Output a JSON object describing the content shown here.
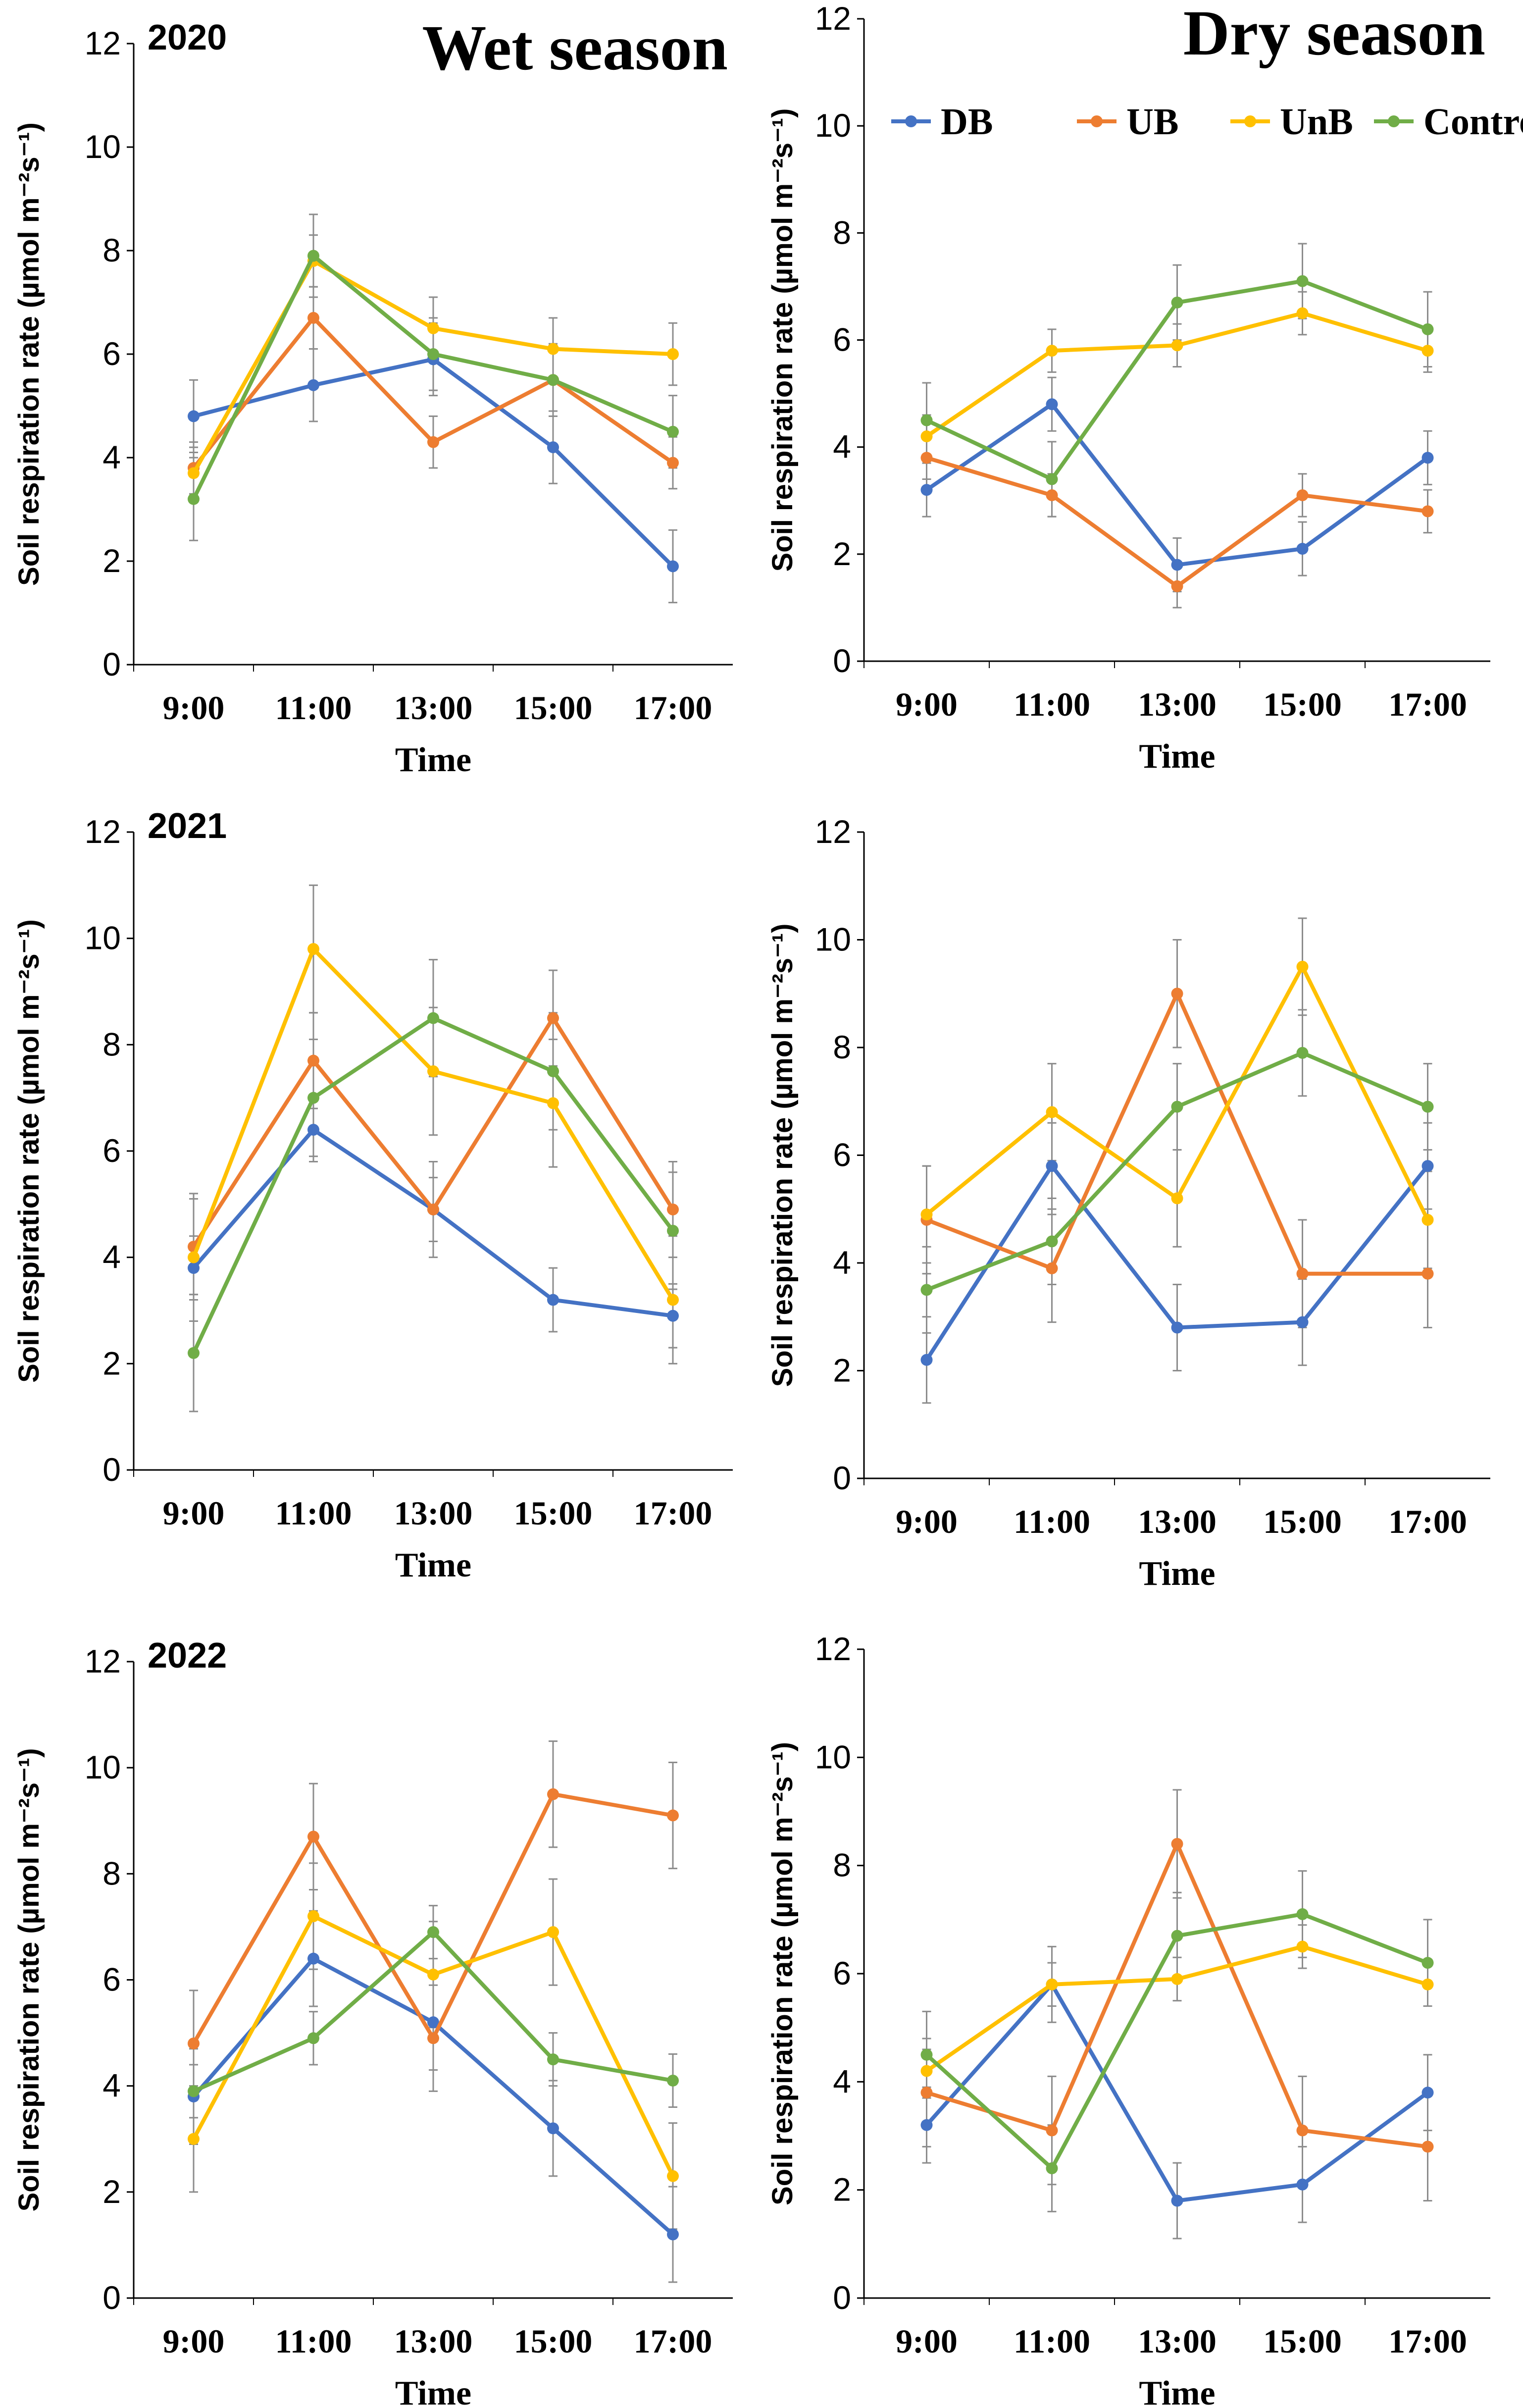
{
  "figure": {
    "wet_title": "Wet season",
    "dry_title": "Dry season"
  },
  "legend": {
    "entries": [
      {
        "name": "DB",
        "color": "#4472C4"
      },
      {
        "name": "UB",
        "color": "#ED7D31"
      },
      {
        "name": "UnB",
        "color": "#FFC000"
      },
      {
        "name": "Control",
        "color": "#70AD47"
      }
    ]
  },
  "chart_data": [
    {
      "type": "line",
      "id": "wet-2020",
      "year_label": "2020",
      "categories": [
        "9:00",
        "11:00",
        "13:00",
        "15:00",
        "17:00"
      ],
      "xlabel": "Time",
      "ylabel": "Soil respiration rate (µmol m⁻²s⁻¹)",
      "ylim": [
        0,
        12
      ],
      "yticks": [
        0,
        2,
        4,
        6,
        8,
        10,
        12
      ],
      "series": [
        {
          "name": "DB",
          "color": "#4472C4",
          "values": [
            4.8,
            5.4,
            5.9,
            4.2,
            1.9
          ],
          "errors": [
            0.7,
            0.7,
            0.7,
            0.7,
            0.7
          ]
        },
        {
          "name": "UB",
          "color": "#ED7D31",
          "values": [
            3.8,
            6.7,
            4.3,
            5.5,
            3.9
          ],
          "errors": [
            0.5,
            0.6,
            0.5,
            0.6,
            0.5
          ]
        },
        {
          "name": "UnB",
          "color": "#FFC000",
          "values": [
            3.7,
            7.8,
            6.5,
            6.1,
            6.0
          ],
          "errors": [
            0.5,
            0.5,
            0.6,
            0.6,
            0.6
          ]
        },
        {
          "name": "Control",
          "color": "#70AD47",
          "values": [
            3.2,
            7.9,
            6.0,
            5.5,
            4.5
          ],
          "errors": [
            0.8,
            0.8,
            0.7,
            0.7,
            0.7
          ]
        }
      ]
    },
    {
      "type": "line",
      "id": "dry-2020",
      "year_label": "",
      "categories": [
        "9:00",
        "11:00",
        "13:00",
        "15:00",
        "17:00"
      ],
      "xlabel": "Time",
      "ylabel": "Soil respiration rate (µmol m⁻²s⁻¹)",
      "ylim": [
        0,
        12
      ],
      "yticks": [
        0,
        2,
        4,
        6,
        8,
        10,
        12
      ],
      "series": [
        {
          "name": "DB",
          "color": "#4472C4",
          "values": [
            3.2,
            4.8,
            1.8,
            2.1,
            3.8
          ],
          "errors": [
            0.5,
            0.5,
            0.5,
            0.5,
            0.5
          ]
        },
        {
          "name": "UB",
          "color": "#ED7D31",
          "values": [
            3.8,
            3.1,
            1.4,
            3.1,
            2.8
          ],
          "errors": [
            0.4,
            0.4,
            0.4,
            0.4,
            0.4
          ]
        },
        {
          "name": "UnB",
          "color": "#FFC000",
          "values": [
            4.2,
            5.8,
            5.9,
            6.5,
            5.8
          ],
          "errors": [
            0.4,
            0.4,
            0.4,
            0.4,
            0.4
          ]
        },
        {
          "name": "Control",
          "color": "#70AD47",
          "values": [
            4.5,
            3.4,
            6.7,
            7.1,
            6.2
          ],
          "errors": [
            0.7,
            0.7,
            0.7,
            0.7,
            0.7
          ]
        }
      ]
    },
    {
      "type": "line",
      "id": "wet-2021",
      "year_label": "2021",
      "categories": [
        "9:00",
        "11:00",
        "13:00",
        "15:00",
        "17:00"
      ],
      "xlabel": "Time",
      "ylabel": "Soil respiration rate (µmol m⁻²s⁻¹)",
      "ylim": [
        0,
        12
      ],
      "yticks": [
        0,
        2,
        4,
        6,
        8,
        10,
        12
      ],
      "series": [
        {
          "name": "DB",
          "color": "#4472C4",
          "values": [
            3.8,
            6.4,
            4.9,
            3.2,
            2.9
          ],
          "errors": [
            0.6,
            0.6,
            0.6,
            0.6,
            0.6
          ]
        },
        {
          "name": "UB",
          "color": "#ED7D31",
          "values": [
            4.2,
            7.7,
            4.9,
            8.5,
            4.9
          ],
          "errors": [
            0.9,
            0.9,
            0.9,
            0.9,
            0.9
          ]
        },
        {
          "name": "UnB",
          "color": "#FFC000",
          "values": [
            4.0,
            9.8,
            7.5,
            6.9,
            3.2
          ],
          "errors": [
            1.2,
            1.2,
            1.2,
            1.2,
            1.2
          ]
        },
        {
          "name": "Control",
          "color": "#70AD47",
          "values": [
            2.2,
            7.0,
            8.5,
            7.5,
            4.5
          ],
          "errors": [
            1.1,
            1.1,
            1.1,
            1.1,
            1.1
          ]
        }
      ]
    },
    {
      "type": "line",
      "id": "dry-2021",
      "year_label": "",
      "categories": [
        "9:00",
        "11:00",
        "13:00",
        "15:00",
        "17:00"
      ],
      "xlabel": "Time",
      "ylabel": "Soil respiration rate (µmol m⁻²s⁻¹)",
      "ylim": [
        0,
        12
      ],
      "yticks": [
        0,
        2,
        4,
        6,
        8,
        10,
        12
      ],
      "series": [
        {
          "name": "DB",
          "color": "#4472C4",
          "values": [
            2.2,
            5.8,
            2.8,
            2.9,
            5.8
          ],
          "errors": [
            0.8,
            0.8,
            0.8,
            0.8,
            0.8
          ]
        },
        {
          "name": "UB",
          "color": "#ED7D31",
          "values": [
            4.8,
            3.9,
            9.0,
            3.8,
            3.8
          ],
          "errors": [
            1.0,
            1.0,
            1.0,
            1.0,
            1.0
          ]
        },
        {
          "name": "UnB",
          "color": "#FFC000",
          "values": [
            4.9,
            6.8,
            5.2,
            9.5,
            4.8
          ],
          "errors": [
            0.9,
            0.9,
            0.9,
            0.9,
            0.9
          ]
        },
        {
          "name": "Control",
          "color": "#70AD47",
          "values": [
            3.5,
            4.4,
            6.9,
            7.9,
            6.9
          ],
          "errors": [
            0.8,
            0.8,
            0.8,
            0.8,
            0.8
          ]
        }
      ]
    },
    {
      "type": "line",
      "id": "wet-2022",
      "year_label": "2022",
      "categories": [
        "9:00",
        "11:00",
        "13:00",
        "15:00",
        "17:00"
      ],
      "xlabel": "Time",
      "ylabel": "Soil respiration rate (µmol m⁻²s⁻¹)",
      "ylim": [
        0,
        12
      ],
      "yticks": [
        0,
        2,
        4,
        6,
        8,
        10,
        12
      ],
      "series": [
        {
          "name": "DB",
          "color": "#4472C4",
          "values": [
            3.8,
            6.4,
            5.2,
            3.2,
            1.2
          ],
          "errors": [
            0.9,
            0.9,
            0.9,
            0.9,
            0.9
          ]
        },
        {
          "name": "UB",
          "color": "#ED7D31",
          "values": [
            4.8,
            8.7,
            4.9,
            9.5,
            9.1
          ],
          "errors": [
            1.0,
            1.0,
            1.0,
            1.0,
            1.0
          ]
        },
        {
          "name": "UnB",
          "color": "#FFC000",
          "values": [
            3.0,
            7.2,
            6.1,
            6.9,
            2.3
          ],
          "errors": [
            1.0,
            1.0,
            1.0,
            1.0,
            1.0
          ]
        },
        {
          "name": "Control",
          "color": "#70AD47",
          "values": [
            3.9,
            4.9,
            6.9,
            4.5,
            4.1
          ],
          "errors": [
            0.5,
            0.5,
            0.5,
            0.5,
            0.5
          ]
        }
      ]
    },
    {
      "type": "line",
      "id": "dry-2022",
      "year_label": "",
      "categories": [
        "9:00",
        "11:00",
        "13:00",
        "15:00",
        "17:00"
      ],
      "xlabel": "Time",
      "ylabel": "Soil respiration rate (µmol m⁻²s⁻¹)",
      "ylim": [
        0,
        12
      ],
      "yticks": [
        0,
        2,
        4,
        6,
        8,
        10,
        12
      ],
      "series": [
        {
          "name": "DB",
          "color": "#4472C4",
          "values": [
            3.2,
            5.8,
            1.8,
            2.1,
            3.8
          ],
          "errors": [
            0.7,
            0.7,
            0.7,
            0.7,
            0.7
          ]
        },
        {
          "name": "UB",
          "color": "#ED7D31",
          "values": [
            3.8,
            3.1,
            8.4,
            3.1,
            2.8
          ],
          "errors": [
            1.0,
            1.0,
            1.0,
            1.0,
            1.0
          ]
        },
        {
          "name": "UnB",
          "color": "#FFC000",
          "values": [
            4.2,
            5.8,
            5.9,
            6.5,
            5.8
          ],
          "errors": [
            0.4,
            0.4,
            0.4,
            0.4,
            0.4
          ]
        },
        {
          "name": "Control",
          "color": "#70AD47",
          "values": [
            4.5,
            2.4,
            6.7,
            7.1,
            6.2
          ],
          "errors": [
            0.8,
            0.8,
            0.8,
            0.8,
            0.8
          ]
        }
      ]
    }
  ]
}
